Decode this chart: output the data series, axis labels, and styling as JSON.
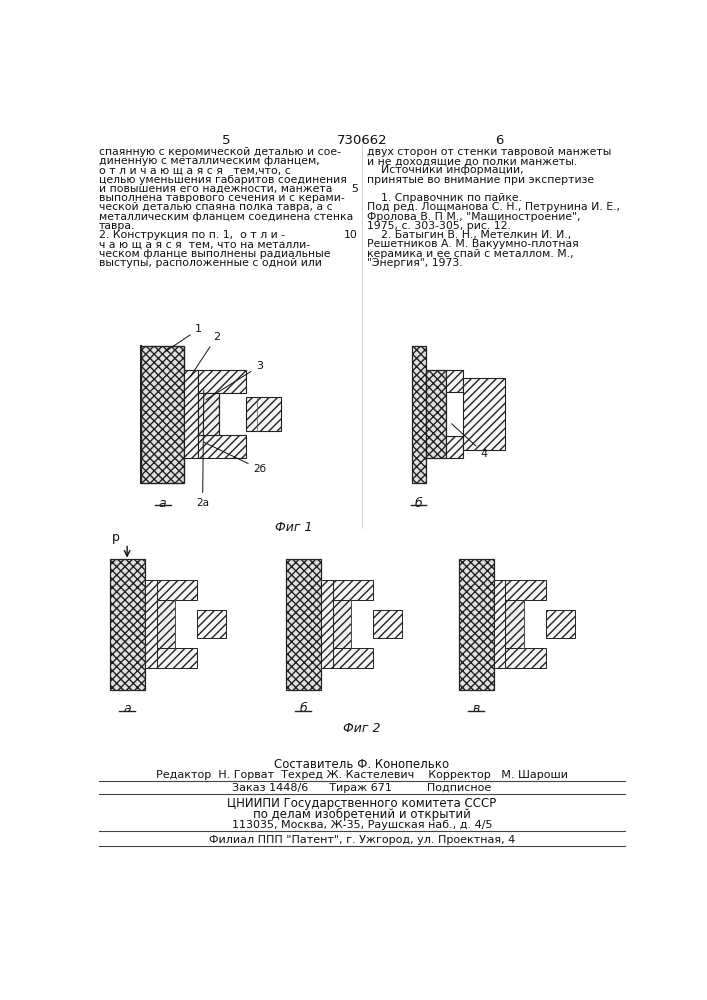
{
  "page_number_left": "5",
  "page_number_center": "730662",
  "page_number_right": "6",
  "col_left_text": [
    "спаянную с керомической деталью и сое-",
    "диненную с металлическим фланцем,",
    "о т л и ч а ю щ а я с я   тем,что, с",
    "целью уменьшения габаритов соединения",
    "и повышения его надежности, манжета",
    "выполнена таврового сечения и с керами-",
    "ческой деталью спаяна полка тавра, а с",
    "металлическим фланцем соединена стенка",
    "тавра.",
    "2. Конструкция по п. 1,  о т л и -",
    "ч а ю щ а я с я  тем, что на металли-",
    "ческом фланце выполнены радиальные",
    "выступы, расположенные с одной или"
  ],
  "col_right_text": [
    "двух сторон от стенки тавровой манжеты",
    "и не доходящие до полки манжеты.",
    "    Источники информации,",
    "принятые во внимание при экспертизе",
    "",
    "    1. Справочник по пайке.",
    "Под ред. Лощманова С. Н., Петрунина И. Е.,",
    "Фролова В. П М., \"Машиностроение\",",
    "1975, с. 303-305, рис. 12.",
    "    2. Батыгин В. Н., Метелкин И. И.,",
    "Решетников А. М. Вакуумно-плотная",
    "керамика и ее спай с металлом. М.,",
    "\"Энергия\", 1973."
  ],
  "footer_line1": "Составитель Ф. Конопелько",
  "footer_line2": "Редактор  Н. Горват  Техред Ж. Кастелевич    Корректор   М. Шароши",
  "footer_line3": "Заказ 1448/6      Тираж 671          Подписное",
  "footer_line4": "ЦНИИПИ Государственного комитета СССР",
  "footer_line5": "по делам изобретений и открытий",
  "footer_line6": "113035, Москва, Ж-35, Раушская наб., д. 4/5",
  "footer_line7": "Филиал ППП \"Патент\", г. Ужгород, ул. Проектная, 4",
  "bg_color": "#ffffff",
  "text_color": "#111111"
}
